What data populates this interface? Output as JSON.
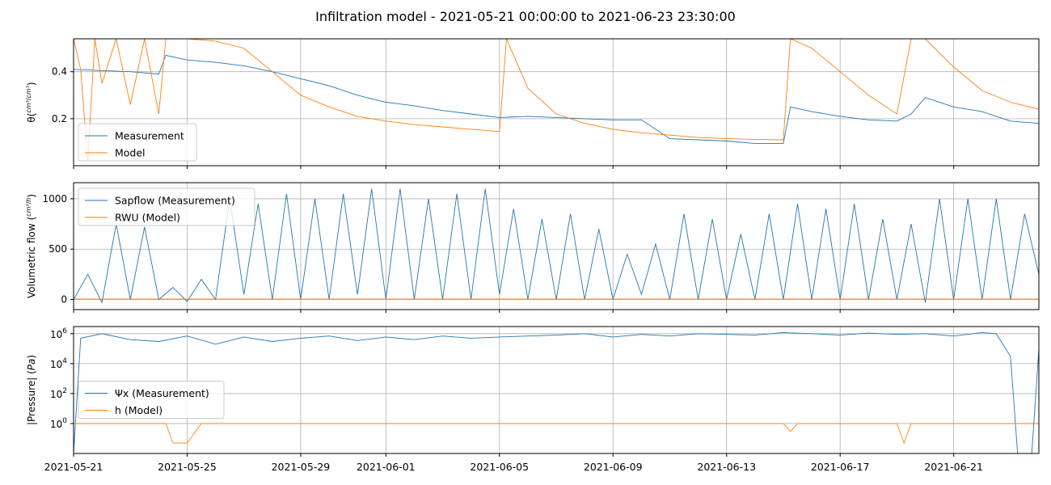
{
  "figure": {
    "suptitle": "Infiltration model - 2021-05-21 00:00:00 to 2021-06-23 23:30:00"
  },
  "colors": {
    "measurement": "#1f77b4",
    "model": "#ff7f0e",
    "grid": "#b0b0b0",
    "axis": "#000000"
  },
  "shared_x": {
    "type": "date",
    "range": [
      "2021-05-21",
      "2021-06-24"
    ],
    "ticks": [
      "2021-05-21",
      "2021-05-25",
      "2021-05-29",
      "2021-06-01",
      "2021-06-05",
      "2021-06-09",
      "2021-06-13",
      "2021-06-17",
      "2021-06-21"
    ]
  },
  "chart_data": [
    {
      "type": "line",
      "ylabel_main": "θ(",
      "ylabel_frac_num": "cm³",
      "ylabel_frac_den": "cm³",
      "ylabel_close": ")",
      "ylim": [
        0.0,
        0.54
      ],
      "yticks": [
        0.2,
        0.4
      ],
      "ytick_labels": [
        "0.2",
        "0.4"
      ],
      "grid": true,
      "legend_loc": "lower left",
      "series": [
        {
          "name": "Measurement",
          "x": [
            "2021-05-21",
            "2021-05-22",
            "2021-05-23",
            "2021-05-24",
            "2021-05-24 06:00",
            "2021-05-25",
            "2021-05-26",
            "2021-05-27",
            "2021-05-28",
            "2021-05-29",
            "2021-05-30",
            "2021-05-31",
            "2021-06-01",
            "2021-06-02",
            "2021-06-03",
            "2021-06-04",
            "2021-06-05",
            "2021-06-06",
            "2021-06-07",
            "2021-06-08",
            "2021-06-09",
            "2021-06-10",
            "2021-06-11",
            "2021-06-12",
            "2021-06-13",
            "2021-06-14",
            "2021-06-15",
            "2021-06-15 06:00",
            "2021-06-16",
            "2021-06-17",
            "2021-06-18",
            "2021-06-19",
            "2021-06-19 12:00",
            "2021-06-20",
            "2021-06-21",
            "2021-06-22",
            "2021-06-23",
            "2021-06-24"
          ],
          "values": [
            0.41,
            0.405,
            0.4,
            0.39,
            0.47,
            0.45,
            0.44,
            0.425,
            0.4,
            0.37,
            0.34,
            0.3,
            0.27,
            0.255,
            0.235,
            0.22,
            0.205,
            0.21,
            0.205,
            0.2,
            0.195,
            0.195,
            0.115,
            0.11,
            0.105,
            0.095,
            0.095,
            0.25,
            0.23,
            0.21,
            0.195,
            0.19,
            0.22,
            0.29,
            0.25,
            0.23,
            0.19,
            0.18
          ]
        },
        {
          "name": "Model",
          "x": [
            "2021-05-21",
            "2021-05-21 06:00",
            "2021-05-21 12:00",
            "2021-05-21 18:00",
            "2021-05-22",
            "2021-05-22 12:00",
            "2021-05-23",
            "2021-05-23 12:00",
            "2021-05-24",
            "2021-05-24 06:00",
            "2021-05-25",
            "2021-05-26",
            "2021-05-27",
            "2021-05-28",
            "2021-05-29",
            "2021-05-30",
            "2021-05-31",
            "2021-06-01",
            "2021-06-02",
            "2021-06-03",
            "2021-06-04",
            "2021-06-05",
            "2021-06-05 06:00",
            "2021-06-06",
            "2021-06-07",
            "2021-06-08",
            "2021-06-09",
            "2021-06-10",
            "2021-06-11",
            "2021-06-12",
            "2021-06-13",
            "2021-06-14",
            "2021-06-15",
            "2021-06-15 06:00",
            "2021-06-16",
            "2021-06-17",
            "2021-06-18",
            "2021-06-19",
            "2021-06-19 12:00",
            "2021-06-20",
            "2021-06-21",
            "2021-06-22",
            "2021-06-23",
            "2021-06-24"
          ],
          "values": [
            0.54,
            0.41,
            0.02,
            0.54,
            0.35,
            0.54,
            0.26,
            0.54,
            0.22,
            0.54,
            0.54,
            0.53,
            0.5,
            0.4,
            0.3,
            0.25,
            0.21,
            0.19,
            0.175,
            0.165,
            0.155,
            0.145,
            0.54,
            0.33,
            0.22,
            0.18,
            0.155,
            0.14,
            0.13,
            0.12,
            0.115,
            0.112,
            0.11,
            0.54,
            0.5,
            0.4,
            0.3,
            0.22,
            0.54,
            0.54,
            0.42,
            0.32,
            0.27,
            0.24
          ]
        }
      ]
    },
    {
      "type": "line",
      "ylabel_main": "Volumetric flow (",
      "ylabel_frac_num": "cm³",
      "ylabel_frac_den": "h",
      "ylabel_close": ")",
      "ylim": [
        -100,
        1160
      ],
      "yticks": [
        0,
        500,
        1000
      ],
      "ytick_labels": [
        "0",
        "500",
        "1000"
      ],
      "grid": true,
      "legend_loc": "upper left",
      "series": [
        {
          "name": "Sapflow (Measurement)",
          "x": [
            "2021-05-21",
            "2021-05-21 12:00",
            "2021-05-22",
            "2021-05-22 12:00",
            "2021-05-23",
            "2021-05-23 12:00",
            "2021-05-24",
            "2021-05-24 12:00",
            "2021-05-25",
            "2021-05-25 12:00",
            "2021-05-26",
            "2021-05-26 12:00",
            "2021-05-27",
            "2021-05-27 12:00",
            "2021-05-28",
            "2021-05-28 12:00",
            "2021-05-29",
            "2021-05-29 12:00",
            "2021-05-30",
            "2021-05-30 12:00",
            "2021-05-31",
            "2021-05-31 12:00",
            "2021-06-01",
            "2021-06-01 12:00",
            "2021-06-02",
            "2021-06-02 12:00",
            "2021-06-03",
            "2021-06-03 12:00",
            "2021-06-04",
            "2021-06-04 12:00",
            "2021-06-05",
            "2021-06-05 12:00",
            "2021-06-06",
            "2021-06-06 12:00",
            "2021-06-07",
            "2021-06-07 12:00",
            "2021-06-08",
            "2021-06-08 12:00",
            "2021-06-09",
            "2021-06-09 12:00",
            "2021-06-10",
            "2021-06-10 12:00",
            "2021-06-11",
            "2021-06-11 12:00",
            "2021-06-12",
            "2021-06-12 12:00",
            "2021-06-13",
            "2021-06-13 12:00",
            "2021-06-14",
            "2021-06-14 12:00",
            "2021-06-15",
            "2021-06-15 12:00",
            "2021-06-16",
            "2021-06-16 12:00",
            "2021-06-17",
            "2021-06-17 12:00",
            "2021-06-18",
            "2021-06-18 12:00",
            "2021-06-19",
            "2021-06-19 12:00",
            "2021-06-20",
            "2021-06-20 12:00",
            "2021-06-21",
            "2021-06-21 12:00",
            "2021-06-22",
            "2021-06-22 12:00",
            "2021-06-23",
            "2021-06-23 12:00",
            "2021-06-24"
          ],
          "values": [
            0,
            250,
            -30,
            750,
            0,
            720,
            0,
            120,
            -20,
            200,
            0,
            1000,
            50,
            950,
            0,
            1050,
            0,
            1000,
            0,
            1050,
            50,
            1100,
            0,
            1100,
            0,
            1000,
            0,
            1050,
            0,
            1100,
            50,
            900,
            0,
            800,
            0,
            850,
            0,
            700,
            0,
            450,
            50,
            550,
            0,
            850,
            0,
            800,
            0,
            650,
            0,
            850,
            0,
            950,
            0,
            900,
            0,
            950,
            0,
            800,
            0,
            750,
            -30,
            1000,
            0,
            1000,
            0,
            1000,
            0,
            850,
            250
          ]
        },
        {
          "name": "RWU (Model)",
          "x": [
            "2021-05-21",
            "2021-05-28",
            "2021-06-05",
            "2021-06-12",
            "2021-06-19",
            "2021-06-24"
          ],
          "values": [
            5,
            5,
            4,
            5,
            5,
            5
          ]
        }
      ]
    },
    {
      "type": "line",
      "y_scale": "log",
      "ylabel_main": "|Pressure| (",
      "ylabel_unit": "Pa",
      "ylabel_close": ")",
      "ylim": [
        0.01,
        3000000
      ],
      "yticks": [
        1,
        100,
        10000,
        1000000
      ],
      "ytick_bases": [
        "10",
        "10",
        "10",
        "10"
      ],
      "ytick_exps": [
        "0",
        "2",
        "4",
        "6"
      ],
      "grid": true,
      "legend_loc": "center left",
      "series": [
        {
          "name": "Ψx (Measurement)",
          "x": [
            "2021-05-21",
            "2021-05-21 06:00",
            "2021-05-22",
            "2021-05-23",
            "2021-05-24",
            "2021-05-25",
            "2021-05-26",
            "2021-05-27",
            "2021-05-28",
            "2021-05-29",
            "2021-05-30",
            "2021-05-31",
            "2021-06-01",
            "2021-06-02",
            "2021-06-03",
            "2021-06-04",
            "2021-06-05",
            "2021-06-06",
            "2021-06-07",
            "2021-06-08",
            "2021-06-09",
            "2021-06-10",
            "2021-06-11",
            "2021-06-12",
            "2021-06-13",
            "2021-06-14",
            "2021-06-15",
            "2021-06-16",
            "2021-06-17",
            "2021-06-18",
            "2021-06-19",
            "2021-06-20",
            "2021-06-21",
            "2021-06-22",
            "2021-06-22 12:00",
            "2021-06-23",
            "2021-06-23 06:00",
            "2021-06-23 18:00",
            "2021-06-24"
          ],
          "values": [
            0.01,
            500000,
            1000000,
            400000,
            300000,
            700000,
            200000,
            600000,
            300000,
            500000,
            700000,
            350000,
            600000,
            400000,
            700000,
            500000,
            600000,
            700000,
            800000,
            1000000,
            600000,
            900000,
            700000,
            1000000,
            900000,
            800000,
            1200000,
            1000000,
            800000,
            1100000,
            900000,
            1000000,
            700000,
            1200000,
            1000000,
            30000,
            0.01,
            0.01,
            100000
          ]
        },
        {
          "name": "h (Model)",
          "x": [
            "2021-05-21",
            "2021-05-24 06:00",
            "2021-05-24 12:00",
            "2021-05-25",
            "2021-05-25 12:00",
            "2021-06-15",
            "2021-06-15 06:00",
            "2021-06-15 12:00",
            "2021-06-19",
            "2021-06-19 06:00",
            "2021-06-19 12:00",
            "2021-06-24"
          ],
          "values": [
            1,
            1,
            0.05,
            0.05,
            1,
            1,
            0.3,
            1,
            1,
            0.05,
            1,
            1
          ]
        }
      ]
    }
  ]
}
